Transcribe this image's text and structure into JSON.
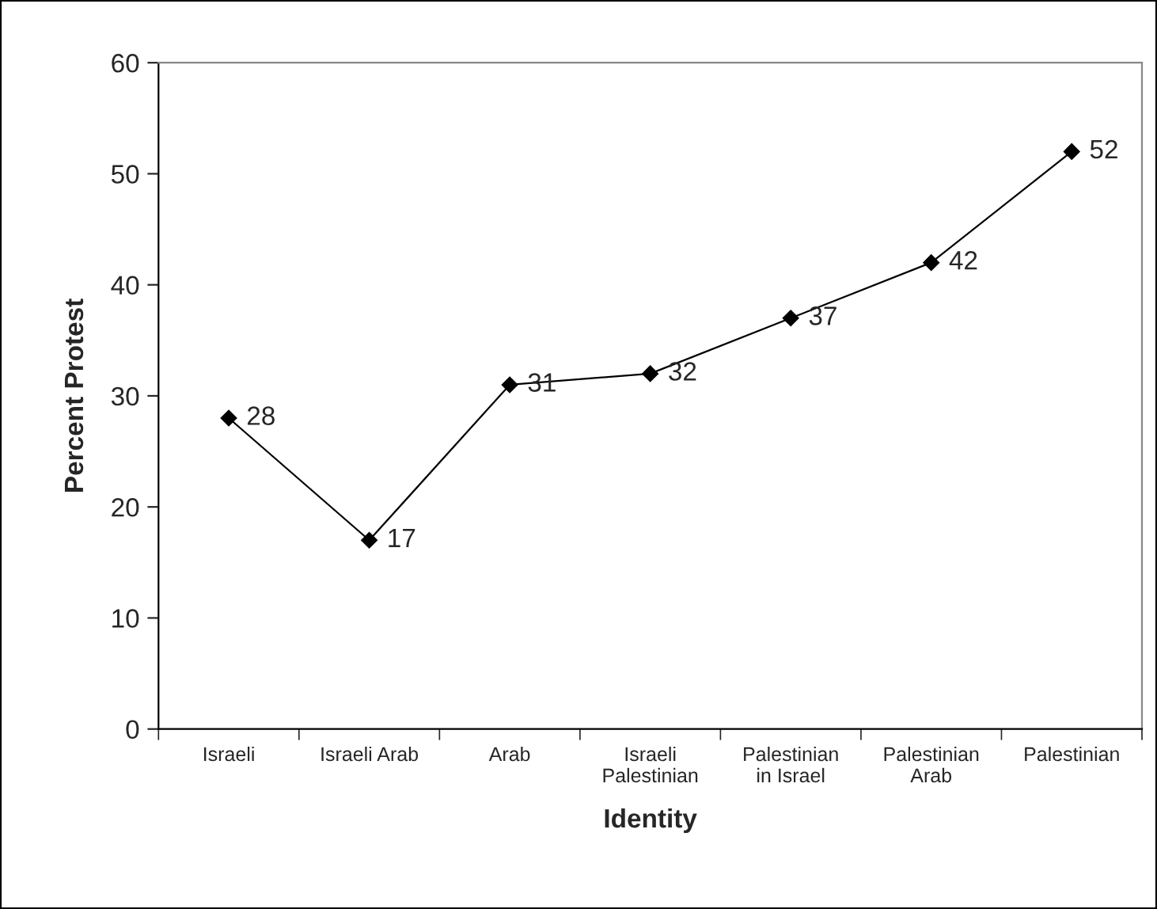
{
  "chart_data": {
    "type": "line",
    "xlabel": "Identity",
    "ylabel": "Percent Protest",
    "categories": [
      "Israeli",
      "Israeli Arab",
      "Arab",
      "Israeli\nPalestinian",
      "Palestinian\nin Israel",
      "Palestinian\nArab",
      "Palestinian"
    ],
    "series": [
      {
        "color": "#000000",
        "values": [
          28,
          17,
          31,
          32,
          37,
          42,
          52
        ]
      }
    ],
    "ylim": [
      0,
      60
    ],
    "yticks": [
      0,
      10,
      20,
      30,
      40,
      50,
      60
    ],
    "data_labels": true,
    "marker": "diamond",
    "line_style": "solid",
    "grid": false,
    "legend": false
  }
}
